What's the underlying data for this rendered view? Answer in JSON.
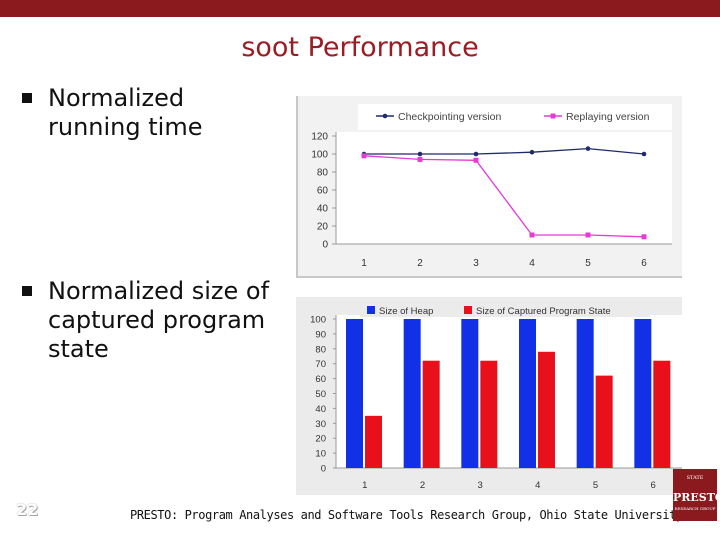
{
  "slide": {
    "title": "soot Performance",
    "bullets": [
      {
        "lines": [
          "Normalized",
          "running time"
        ]
      },
      {
        "lines": [
          "Normalized size of",
          "captured program",
          "state"
        ]
      }
    ],
    "number": "22",
    "footer": "PRESTO: Program Analyses and Software Tools Research Group, Ohio State University",
    "logo": {
      "line1": "STATE",
      "line2": "PRESTO",
      "line3": "RESEARCH GROUP"
    }
  },
  "colors": {
    "accent": "#8b1a1f",
    "title": "#9b1c24",
    "checkpointing": "#1f2a6b",
    "replaying": "#e23bd6",
    "heap": "#1230e6",
    "captured": "#e8101a"
  },
  "chart_data": [
    {
      "type": "line",
      "categories": [
        "1",
        "2",
        "3",
        "4",
        "5",
        "6"
      ],
      "series": [
        {
          "name": "Checkpointing version",
          "values": [
            100,
            100,
            100,
            102,
            106,
            100
          ]
        },
        {
          "name": "Replaying version",
          "values": [
            98,
            94,
            93,
            10,
            10,
            8
          ]
        }
      ],
      "yticks": [
        "0",
        "20",
        "40",
        "60",
        "80",
        "100",
        "120"
      ],
      "ylim": [
        0,
        120
      ],
      "grid": false,
      "legend": "top"
    },
    {
      "type": "bar",
      "categories": [
        "1",
        "2",
        "3",
        "4",
        "5",
        "6"
      ],
      "series": [
        {
          "name": "Size of Heap",
          "values": [
            100,
            100,
            100,
            100,
            100,
            100
          ]
        },
        {
          "name": "Size of Captured Program State",
          "values": [
            35,
            72,
            72,
            78,
            62,
            72
          ]
        }
      ],
      "yticks": [
        "0",
        "10",
        "20",
        "30",
        "40",
        "50",
        "60",
        "70",
        "80",
        "90",
        "100"
      ],
      "ylim": [
        0,
        100
      ],
      "grid": false,
      "legend": "top"
    }
  ]
}
